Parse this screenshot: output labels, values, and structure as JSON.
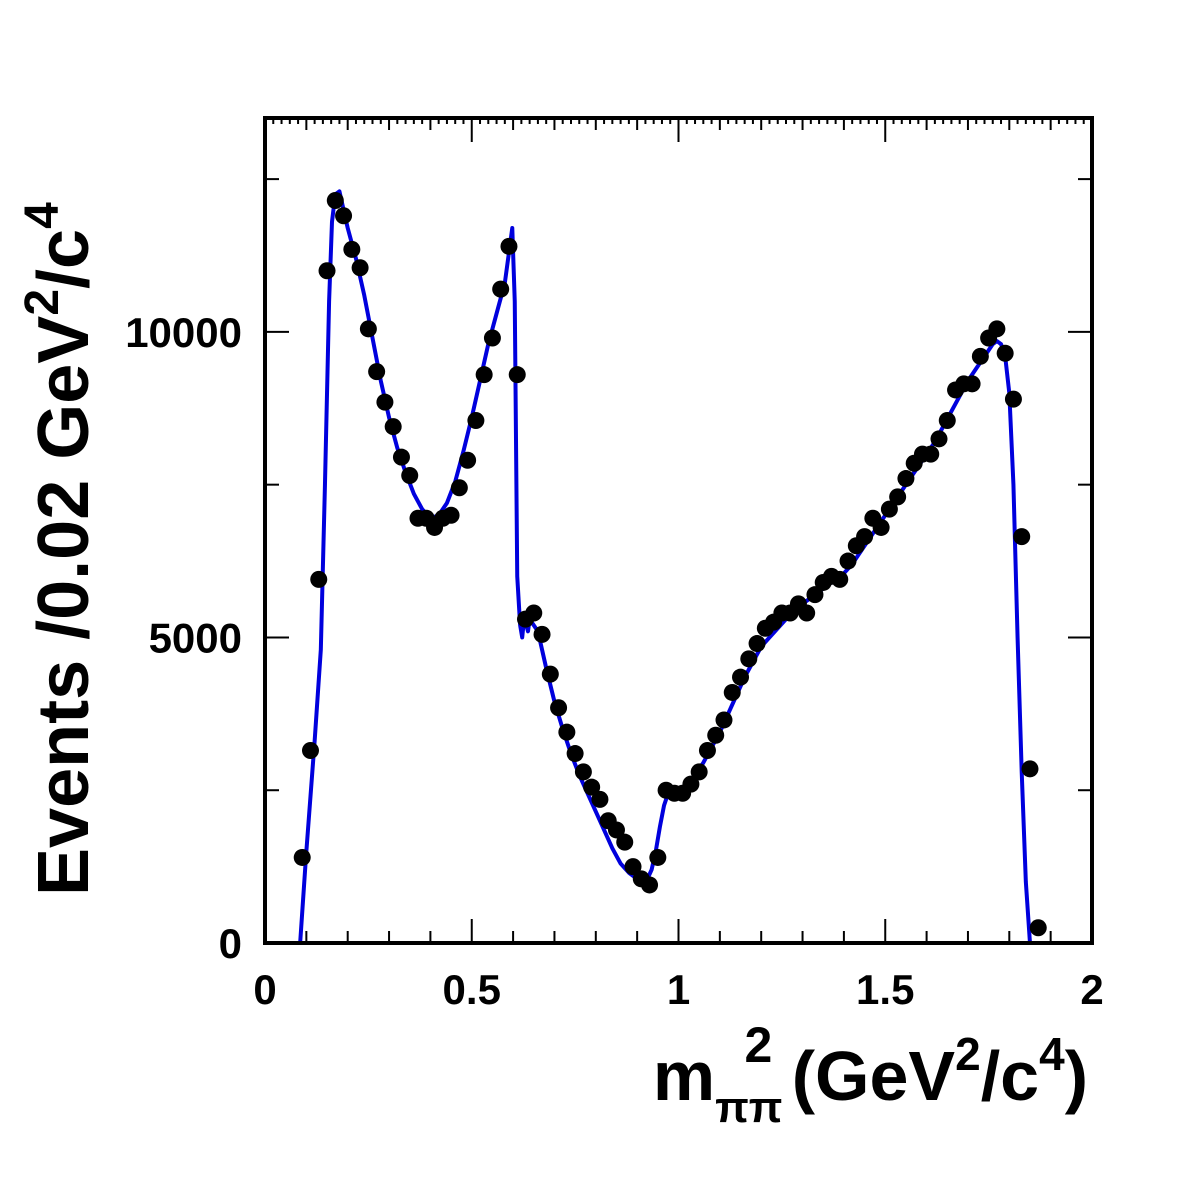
{
  "chart_data": {
    "type": "scatter",
    "xlim": [
      0,
      2
    ],
    "ylim": [
      0,
      13500
    ],
    "x_ticks": [
      0,
      0.5,
      1,
      1.5,
      2
    ],
    "x_tick_labels": [
      "0",
      "0.5",
      "1",
      "1.5",
      "2"
    ],
    "y_ticks": [
      0,
      5000,
      10000
    ],
    "y_tick_labels": [
      "0",
      "5000",
      "10000"
    ],
    "xlabel": {
      "main": "m",
      "sub": "ππ",
      "sup": "2",
      "unit_open": " (GeV",
      "unit_sup1": "2",
      "unit_mid": "/c",
      "unit_sup2": "4",
      "unit_close": ")"
    },
    "ylabel": {
      "main": "Events /0.02 GeV",
      "sup1": "2",
      "mid": "/c",
      "sup2": "4"
    },
    "grid": false,
    "colors": {
      "points": "#000000",
      "fit": "#0000dd",
      "frame": "#000000"
    },
    "series": [
      {
        "role": "data points",
        "x": [
          0.09,
          0.11,
          0.13,
          0.15,
          0.17,
          0.19,
          0.21,
          0.23,
          0.25,
          0.27,
          0.29,
          0.31,
          0.33,
          0.35,
          0.37,
          0.39,
          0.41,
          0.43,
          0.45,
          0.47,
          0.49,
          0.51,
          0.53,
          0.55,
          0.57,
          0.59,
          0.61,
          0.63,
          0.65,
          0.67,
          0.69,
          0.71,
          0.73,
          0.75,
          0.77,
          0.79,
          0.81,
          0.83,
          0.85,
          0.87,
          0.89,
          0.91,
          0.93,
          0.95,
          0.97,
          0.99,
          1.01,
          1.03,
          1.05,
          1.07,
          1.09,
          1.11,
          1.13,
          1.15,
          1.17,
          1.19,
          1.21,
          1.23,
          1.25,
          1.27,
          1.29,
          1.31,
          1.33,
          1.35,
          1.37,
          1.39,
          1.41,
          1.43,
          1.45,
          1.47,
          1.49,
          1.51,
          1.53,
          1.55,
          1.57,
          1.59,
          1.61,
          1.63,
          1.65,
          1.67,
          1.69,
          1.71,
          1.73,
          1.75,
          1.77,
          1.79,
          1.81,
          1.83,
          1.85,
          1.87
        ],
        "y": [
          1400,
          3150,
          5950,
          11000,
          12150,
          11900,
          11350,
          11050,
          10050,
          9350,
          8850,
          8450,
          7950,
          7650,
          6950,
          6950,
          6800,
          6950,
          7000,
          7450,
          7900,
          8550,
          9300,
          9900,
          10700,
          11400,
          9300,
          5300,
          5400,
          5050,
          4400,
          3850,
          3450,
          3100,
          2800,
          2550,
          2350,
          2000,
          1850,
          1650,
          1250,
          1050,
          950,
          1400,
          2500,
          2450,
          2450,
          2600,
          2800,
          3150,
          3400,
          3650,
          4100,
          4350,
          4650,
          4900,
          5150,
          5250,
          5400,
          5400,
          5550,
          5400,
          5700,
          5900,
          6000,
          5950,
          6250,
          6500,
          6650,
          6950,
          6800,
          7100,
          7300,
          7600,
          7850,
          8000,
          8000,
          8250,
          8550,
          9050,
          9150,
          9150,
          9600,
          9900,
          10050,
          9650,
          8900,
          6650,
          2850,
          250
        ]
      },
      {
        "role": "fit curve",
        "x": [
          0.085,
          0.1,
          0.12,
          0.135,
          0.145,
          0.155,
          0.162,
          0.17,
          0.18,
          0.19,
          0.2,
          0.22,
          0.24,
          0.26,
          0.28,
          0.3,
          0.32,
          0.34,
          0.36,
          0.38,
          0.4,
          0.42,
          0.44,
          0.46,
          0.48,
          0.5,
          0.52,
          0.54,
          0.56,
          0.58,
          0.59,
          0.598,
          0.604,
          0.61,
          0.617,
          0.622,
          0.625,
          0.628,
          0.632,
          0.636,
          0.64,
          0.66,
          0.68,
          0.7,
          0.72,
          0.74,
          0.76,
          0.78,
          0.8,
          0.82,
          0.84,
          0.86,
          0.88,
          0.9,
          0.915,
          0.925,
          0.935,
          0.945,
          0.955,
          0.965,
          0.975,
          0.985,
          0.995,
          1.0,
          1.02,
          1.04,
          1.06,
          1.08,
          1.1,
          1.12,
          1.14,
          1.16,
          1.18,
          1.2,
          1.22,
          1.24,
          1.26,
          1.28,
          1.3,
          1.32,
          1.34,
          1.36,
          1.38,
          1.4,
          1.42,
          1.44,
          1.46,
          1.48,
          1.5,
          1.52,
          1.54,
          1.56,
          1.58,
          1.6,
          1.62,
          1.64,
          1.66,
          1.68,
          1.7,
          1.72,
          1.74,
          1.75,
          1.76,
          1.77,
          1.78,
          1.79,
          1.8,
          1.81,
          1.82,
          1.83,
          1.84,
          1.85,
          1.86,
          1.87
        ],
        "y": [
          0,
          1500,
          3300,
          4800,
          7500,
          10500,
          11800,
          12250,
          12300,
          12000,
          11700,
          11200,
          10600,
          9900,
          9200,
          8600,
          8100,
          7700,
          7350,
          7100,
          6950,
          7000,
          7200,
          7550,
          8050,
          8600,
          9200,
          9800,
          10300,
          10800,
          11300,
          11700,
          10500,
          6000,
          5200,
          5000,
          5200,
          5300,
          5200,
          5100,
          5300,
          5100,
          4500,
          3950,
          3500,
          3100,
          2750,
          2450,
          2150,
          1850,
          1550,
          1300,
          1150,
          1050,
          1000,
          1050,
          1200,
          1500,
          1900,
          2250,
          2450,
          2500,
          2500,
          2500,
          2600,
          2750,
          2950,
          3200,
          3450,
          3750,
          4050,
          4350,
          4600,
          4850,
          5000,
          5150,
          5300,
          5450,
          5550,
          5650,
          5750,
          5850,
          5950,
          6050,
          6200,
          6400,
          6600,
          6800,
          7000,
          7200,
          7400,
          7600,
          7800,
          8000,
          8200,
          8450,
          8700,
          8950,
          9200,
          9400,
          9600,
          9700,
          9800,
          9850,
          9800,
          9600,
          9000,
          7500,
          5000,
          2800,
          1000,
          0,
          0,
          0
        ]
      }
    ]
  }
}
